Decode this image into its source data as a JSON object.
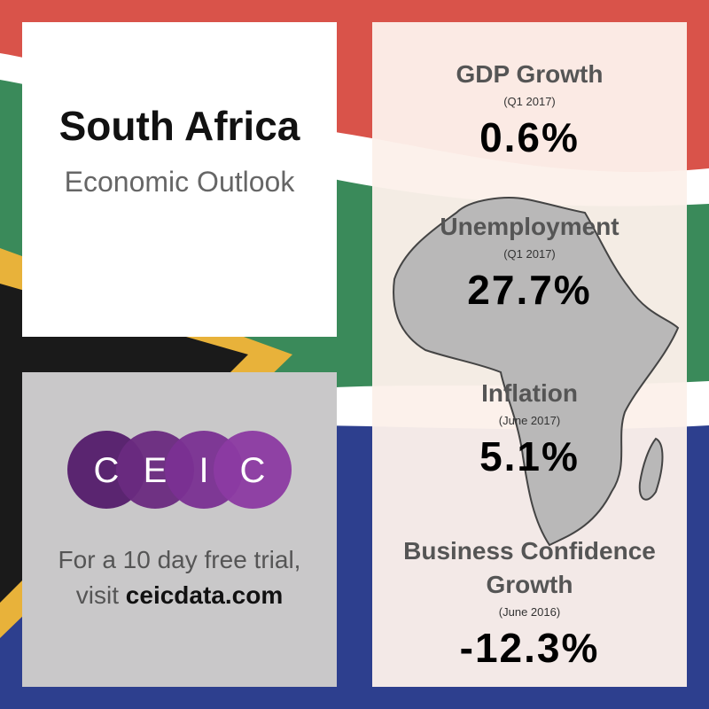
{
  "header": {
    "title": "South Africa",
    "subtitle": "Economic Outlook"
  },
  "logo": {
    "letters": [
      "C",
      "E",
      "I",
      "C"
    ]
  },
  "promo": {
    "line1": "For a 10 day free trial,",
    "line2_prefix": "visit",
    "link": "ceicdata.com"
  },
  "indicators": [
    {
      "name": "GDP Growth",
      "period": "(Q1 2017)",
      "value": "0.6%"
    },
    {
      "name": "Unemployment",
      "period": "(Q1 2017)",
      "value": "27.7%"
    },
    {
      "name": "Inflation",
      "period": "(June 2017)",
      "value": "5.1%"
    },
    {
      "name": "Business Confidence Growth",
      "period": "(June 2016)",
      "value": "-12.3%"
    }
  ]
}
